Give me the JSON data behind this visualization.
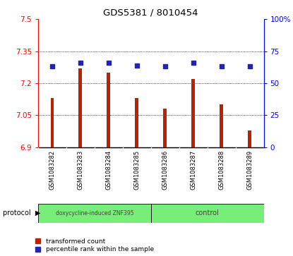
{
  "title": "GDS5381 / 8010454",
  "samples": [
    "GSM1083282",
    "GSM1083283",
    "GSM1083284",
    "GSM1083285",
    "GSM1083286",
    "GSM1083287",
    "GSM1083288",
    "GSM1083289"
  ],
  "transformed_count": [
    7.13,
    7.27,
    7.25,
    7.13,
    7.08,
    7.22,
    7.1,
    6.98
  ],
  "percentile_rank": [
    63,
    66,
    66,
    64,
    63,
    66,
    63,
    63
  ],
  "ylim_left": [
    6.9,
    7.5
  ],
  "ylim_right": [
    0,
    100
  ],
  "yticks_left": [
    6.9,
    7.05,
    7.2,
    7.35,
    7.5
  ],
  "yticks_right": [
    0,
    25,
    50,
    75,
    100
  ],
  "ytick_labels_left": [
    "6.9",
    "7.05",
    "7.2",
    "7.35",
    "7.5"
  ],
  "ytick_labels_right": [
    "0",
    "25",
    "50",
    "75",
    "100%"
  ],
  "bar_color": "#bb2200",
  "dot_color": "#2222bb",
  "doxy_label": "doxycycline-induced ZNF395",
  "ctrl_label": "control",
  "group_color": "#77ee77",
  "protocol_label": "protocol",
  "sample_bg": "#cccccc",
  "legend_bar_label": "transformed count",
  "legend_dot_label": "percentile rank within the sample",
  "bar_width": 0.12
}
